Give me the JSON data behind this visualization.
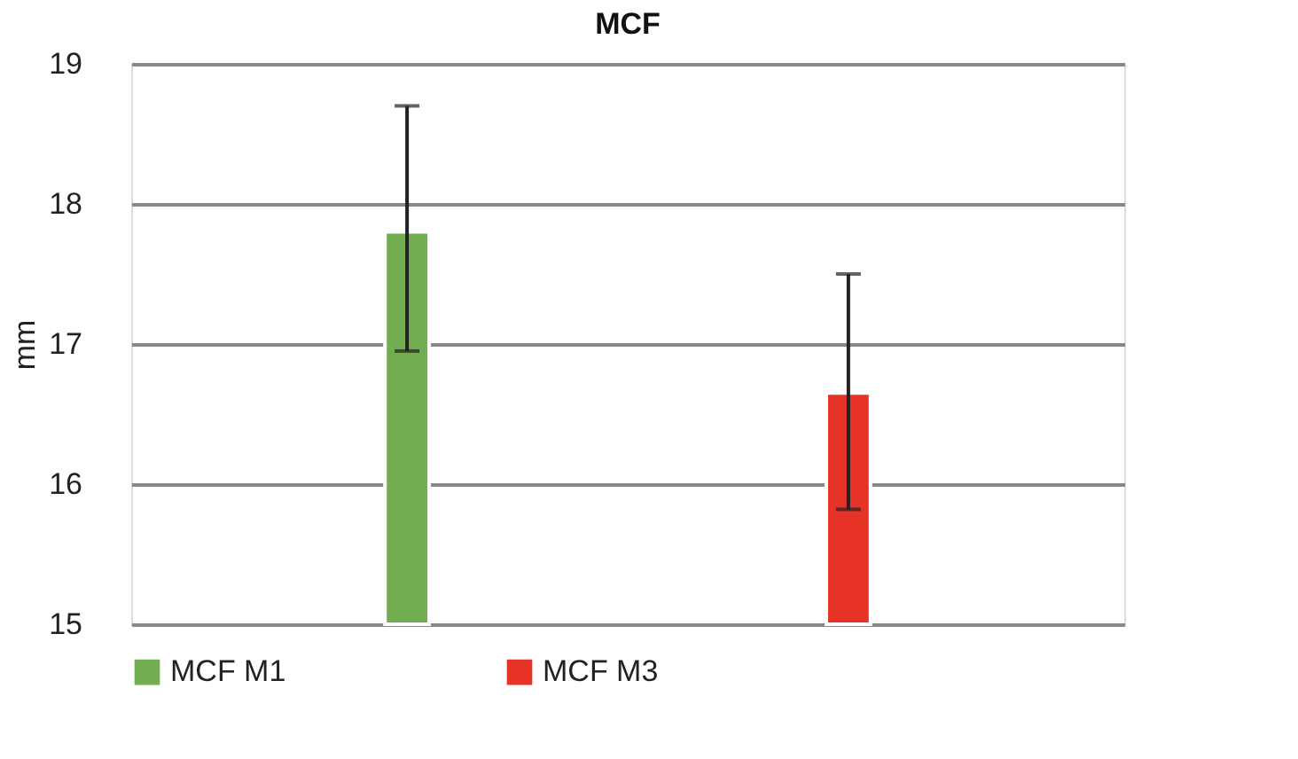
{
  "chart_data": {
    "type": "bar",
    "title": "MCF",
    "ylabel": "mm",
    "categories": [
      null
    ],
    "series": [
      {
        "name": "MCF M1",
        "color": "#72ad52",
        "values": [
          17.8
        ],
        "errors": [
          [
            16.95,
            18.7
          ]
        ]
      },
      {
        "name": "MCF M3",
        "color": "#e63227",
        "values": [
          16.65
        ],
        "errors": [
          [
            15.82,
            17.5
          ]
        ]
      }
    ],
    "ylim": [
      15,
      19
    ],
    "yticks": [
      15,
      16,
      17,
      18,
      19
    ],
    "grid": "y",
    "legend": "bottom",
    "tick_labels": "y"
  }
}
